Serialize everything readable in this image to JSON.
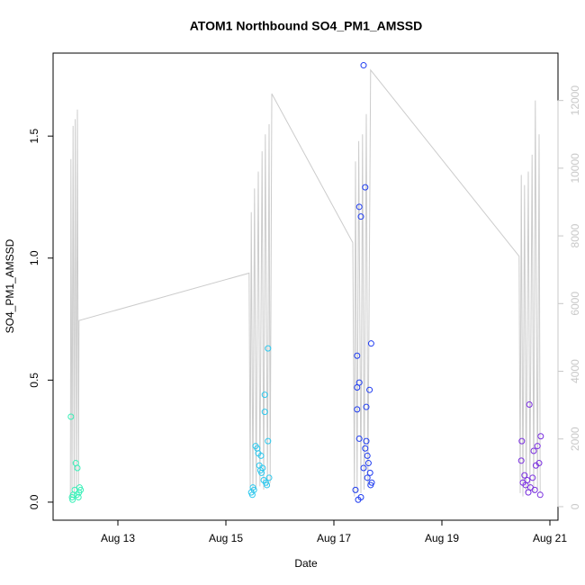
{
  "chart_data": {
    "type": "scatter",
    "title": "ATOM1 Northbound SO4_PM1_AMSSD",
    "x_label": "Date",
    "y_label": "SO4_PM1_AMSSD",
    "xlim": [
      11.8,
      21.15
    ],
    "xticks": [
      {
        "value": 13,
        "label": "Aug 13"
      },
      {
        "value": 15,
        "label": "Aug 15"
      },
      {
        "value": 17,
        "label": "Aug 17"
      },
      {
        "value": 19,
        "label": "Aug 19"
      },
      {
        "value": 21,
        "label": "Aug 21"
      }
    ],
    "ylim": [
      -0.074,
      1.84
    ],
    "yticks": [
      {
        "value": 0,
        "label": "0.0"
      },
      0.5,
      {
        "value": 1,
        "label": "1.0"
      },
      1.5
    ],
    "y2lim": [
      -400,
      13400
    ],
    "y2ticks": [
      0,
      2000,
      4000,
      6000,
      8000,
      10000,
      12000
    ],
    "y2_color": "#c8c8c8",
    "series": [
      {
        "color": "#3af0b8",
        "x": [
          12.13,
          12.22,
          12.25,
          12.2,
          12.17,
          12.15,
          12.28,
          12.29,
          12.31,
          12.16,
          12.24,
          12.27
        ],
        "values": [
          0.35,
          0.16,
          0.14,
          0.05,
          0.03,
          0.02,
          0.04,
          0.06,
          0.05,
          0.01,
          0.03,
          0.02
        ]
      },
      {
        "color": "#2cc8ee",
        "x": [
          15.78,
          15.72,
          15.72,
          15.78,
          15.55,
          15.58,
          15.6,
          15.65,
          15.62,
          15.68,
          15.64,
          15.66,
          15.8,
          15.7,
          15.74,
          15.76,
          15.5,
          15.52,
          15.47,
          15.49
        ],
        "values": [
          0.63,
          0.44,
          0.37,
          0.25,
          0.23,
          0.22,
          0.2,
          0.19,
          0.15,
          0.14,
          0.13,
          0.12,
          0.1,
          0.09,
          0.08,
          0.07,
          0.06,
          0.05,
          0.04,
          0.03
        ]
      },
      {
        "color": "#1f3cf0",
        "x": [
          17.55,
          17.58,
          17.47,
          17.5,
          17.69,
          17.43,
          17.47,
          17.43,
          17.66,
          17.6,
          17.43,
          17.47,
          17.6,
          17.58,
          17.62,
          17.64,
          17.55,
          17.67,
          17.62,
          17.7,
          17.68,
          17.4,
          17.5,
          17.45
        ],
        "values": [
          1.79,
          1.29,
          1.21,
          1.17,
          0.65,
          0.6,
          0.49,
          0.47,
          0.46,
          0.39,
          0.38,
          0.26,
          0.25,
          0.22,
          0.19,
          0.16,
          0.14,
          0.12,
          0.1,
          0.08,
          0.07,
          0.05,
          0.02,
          0.01
        ]
      },
      {
        "color": "#7a2ee0",
        "x": [
          20.62,
          20.83,
          20.48,
          20.77,
          20.7,
          20.47,
          20.8,
          20.74,
          20.53,
          20.68,
          20.58,
          20.5,
          20.55,
          20.64,
          20.72,
          20.6,
          20.82
        ],
        "values": [
          0.4,
          0.27,
          0.25,
          0.23,
          0.21,
          0.17,
          0.16,
          0.15,
          0.11,
          0.1,
          0.09,
          0.08,
          0.07,
          0.06,
          0.05,
          0.04,
          0.03
        ]
      },
      {
        "color": "#cccccc",
        "axis": "y2",
        "x": [
          12.12,
          12.13,
          12.15,
          12.17,
          12.19,
          12.21,
          12.23,
          12.25,
          12.27,
          12.28,
          15.43,
          15.45,
          15.47,
          15.5,
          15.53,
          15.56,
          15.6,
          15.63,
          15.67,
          15.7,
          15.73,
          15.77,
          15.8,
          15.82,
          15.85,
          17.35,
          17.38,
          17.4,
          17.43,
          17.46,
          17.5,
          17.53,
          17.56,
          17.6,
          17.63,
          17.68,
          20.43,
          20.45,
          20.47,
          20.5,
          20.53,
          20.56,
          20.6,
          20.63,
          20.67,
          20.7,
          20.73,
          20.77,
          20.8,
          20.82
        ],
        "values": [
          200,
          10270,
          300,
          11250,
          400,
          11450,
          500,
          11730,
          600,
          5500,
          6900,
          500,
          8700,
          400,
          9400,
          500,
          9900,
          600,
          10500,
          500,
          11000,
          600,
          11300,
          700,
          12200,
          7800,
          300,
          10200,
          400,
          10800,
          400,
          11000,
          500,
          11600,
          600,
          12900,
          7400,
          400,
          9800,
          300,
          9500,
          400,
          9900,
          500,
          10400,
          400,
          12000,
          500,
          11000,
          400
        ]
      }
    ]
  }
}
